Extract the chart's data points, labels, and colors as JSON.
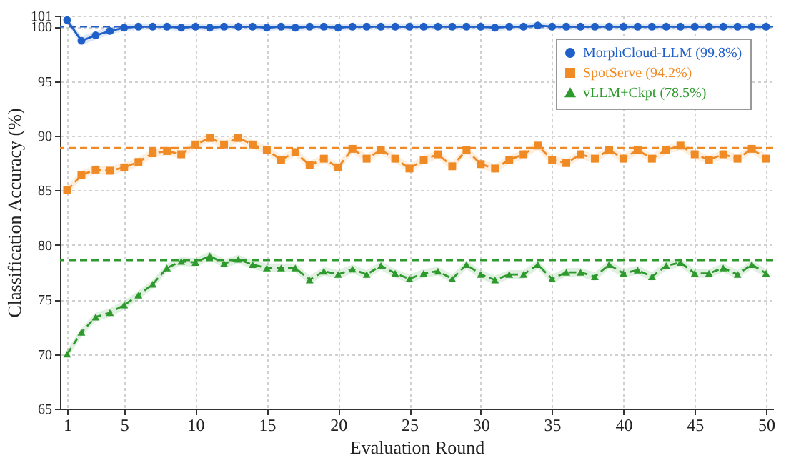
{
  "chart_data": {
    "type": "line",
    "xlabel": "Evaluation Round",
    "ylabel": "Classification Accuracy (%)",
    "x": [
      1,
      2,
      3,
      4,
      5,
      6,
      7,
      8,
      9,
      10,
      11,
      12,
      13,
      14,
      15,
      16,
      17,
      18,
      19,
      20,
      21,
      22,
      23,
      24,
      25,
      26,
      27,
      28,
      29,
      30,
      31,
      32,
      33,
      34,
      35,
      36,
      37,
      38,
      39,
      40,
      41,
      42,
      43,
      44,
      45,
      46,
      47,
      48,
      49,
      50
    ],
    "xlim": [
      0.5,
      50.5
    ],
    "xticks": [
      1,
      5,
      10,
      15,
      20,
      25,
      30,
      35,
      40,
      45,
      50
    ],
    "ylim": [
      65,
      101
    ],
    "yticks": [
      65,
      70,
      75,
      80,
      85,
      90,
      95,
      100,
      101
    ],
    "grid": true,
    "legend": "top right",
    "series": [
      {
        "name": "MorphCloud-LLM (99.8%)",
        "color": "#1f5fc8",
        "marker": "circle",
        "line_style": "solid",
        "values": [
          100.6,
          98.7,
          99.2,
          99.6,
          99.9,
          100,
          100,
          100,
          99.9,
          100,
          99.9,
          100,
          100,
          100,
          99.9,
          100,
          99.9,
          100,
          100,
          99.9,
          100,
          100,
          100,
          100,
          100,
          100,
          100,
          100,
          100,
          100,
          99.9,
          100,
          100,
          100.1,
          100,
          100,
          100,
          100,
          100,
          100,
          100,
          100,
          100,
          100,
          100,
          100,
          100,
          100,
          100,
          100
        ],
        "lower": [
          100.3,
          98.3,
          98.8,
          99.3,
          99.6,
          99.7,
          99.7,
          99.7,
          99.6,
          99.7,
          99.6,
          99.7,
          99.7,
          99.7,
          99.6,
          99.7,
          99.6,
          99.7,
          99.7,
          99.6,
          99.7,
          99.7,
          99.7,
          99.7,
          99.7,
          99.7,
          99.7,
          99.7,
          99.7,
          99.7,
          99.6,
          99.7,
          99.7,
          99.8,
          99.7,
          99.7,
          99.7,
          99.7,
          99.7,
          99.7,
          99.7,
          99.7,
          99.7,
          99.7,
          99.7,
          99.7,
          99.7,
          99.7,
          99.7,
          99.7
        ],
        "upper": [
          100.9,
          99.1,
          99.6,
          99.9,
          100.2,
          100.3,
          100.3,
          100.3,
          100.2,
          100.3,
          100.2,
          100.3,
          100.3,
          100.3,
          100.2,
          100.3,
          100.2,
          100.3,
          100.3,
          100.2,
          100.3,
          100.3,
          100.3,
          100.3,
          100.3,
          100.3,
          100.3,
          100.3,
          100.3,
          100.3,
          100.2,
          100.3,
          100.3,
          100.4,
          100.3,
          100.3,
          100.3,
          100.3,
          100.3,
          100.3,
          100.3,
          100.3,
          100.3,
          100.3,
          100.3,
          100.3,
          100.3,
          100.3,
          100.3,
          100.3
        ]
      },
      {
        "name": "SpotServe (94.2%)",
        "color": "#f08a24",
        "marker": "square",
        "line_style": "dashed",
        "values": [
          85.0,
          86.4,
          86.9,
          86.8,
          87.1,
          87.6,
          88.4,
          88.6,
          88.3,
          89.2,
          89.8,
          89.2,
          89.8,
          89.2,
          88.7,
          87.8,
          88.5,
          87.3,
          87.9,
          87.1,
          88.8,
          87.9,
          88.7,
          87.9,
          87.0,
          87.8,
          88.3,
          87.2,
          88.7,
          87.4,
          87.0,
          87.8,
          88.3,
          89.1,
          87.8,
          87.5,
          88.3,
          87.9,
          88.7,
          87.9,
          88.7,
          87.9,
          88.7,
          89.1,
          88.3,
          87.8,
          88.3,
          87.9,
          88.8,
          87.9
        ],
        "lower": [
          84.6,
          86.0,
          86.5,
          86.4,
          86.7,
          87.2,
          88.0,
          88.2,
          87.9,
          88.8,
          89.4,
          88.8,
          89.4,
          88.8,
          88.3,
          87.4,
          88.1,
          86.9,
          87.5,
          86.7,
          88.4,
          87.5,
          88.3,
          87.5,
          86.6,
          87.4,
          87.9,
          86.8,
          88.3,
          87.0,
          86.6,
          87.4,
          87.9,
          88.7,
          87.4,
          87.1,
          87.9,
          87.5,
          88.3,
          87.5,
          88.3,
          87.5,
          88.3,
          88.7,
          87.9,
          87.4,
          87.9,
          87.5,
          88.4,
          87.5
        ],
        "upper": [
          85.4,
          86.8,
          87.3,
          87.2,
          87.5,
          88.0,
          88.8,
          89.0,
          88.7,
          89.6,
          90.2,
          89.6,
          90.2,
          89.6,
          89.1,
          88.2,
          88.9,
          87.7,
          88.3,
          87.5,
          89.2,
          88.3,
          89.1,
          88.3,
          87.4,
          88.2,
          88.7,
          87.6,
          89.1,
          87.8,
          87.4,
          88.2,
          88.7,
          89.5,
          88.2,
          87.9,
          88.7,
          88.3,
          89.1,
          88.3,
          89.1,
          88.3,
          89.1,
          89.5,
          88.7,
          88.2,
          88.7,
          88.3,
          89.2,
          88.3
        ]
      },
      {
        "name": "vLLM+Ckpt (78.5%)",
        "color": "#2e9a2e",
        "marker": "triangle",
        "line_style": "dashed",
        "values": [
          70.0,
          72.0,
          73.4,
          73.8,
          74.5,
          75.4,
          76.4,
          77.9,
          78.5,
          78.4,
          79.0,
          78.3,
          78.7,
          78.2,
          77.9,
          77.9,
          77.9,
          76.8,
          77.6,
          77.3,
          77.8,
          77.3,
          78.1,
          77.4,
          76.9,
          77.4,
          77.6,
          76.9,
          78.2,
          77.3,
          76.8,
          77.3,
          77.3,
          78.2,
          76.9,
          77.5,
          77.5,
          77.1,
          78.2,
          77.4,
          77.7,
          77.1,
          78.1,
          78.4,
          77.4,
          77.4,
          77.9,
          77.3,
          78.2,
          77.4
        ],
        "lower": [
          69.6,
          71.6,
          73.0,
          73.4,
          74.1,
          75.0,
          76.0,
          77.5,
          78.1,
          78.0,
          78.6,
          77.9,
          78.3,
          77.8,
          77.5,
          77.5,
          77.5,
          76.4,
          77.2,
          76.9,
          77.4,
          76.9,
          77.7,
          77.0,
          76.5,
          77.0,
          77.2,
          76.5,
          77.8,
          76.9,
          76.4,
          76.9,
          76.9,
          77.8,
          76.5,
          77.1,
          77.1,
          76.7,
          77.8,
          77.0,
          77.3,
          76.7,
          77.7,
          78.0,
          77.0,
          77.0,
          77.5,
          76.9,
          77.8,
          77.0
        ],
        "upper": [
          70.4,
          72.4,
          73.8,
          74.2,
          74.9,
          75.8,
          76.8,
          78.3,
          78.9,
          78.8,
          79.4,
          78.7,
          79.1,
          78.6,
          78.3,
          78.3,
          78.3,
          77.2,
          78.0,
          77.7,
          78.2,
          77.7,
          78.5,
          77.8,
          77.3,
          77.8,
          78.0,
          77.3,
          78.6,
          77.7,
          77.2,
          77.7,
          77.7,
          78.6,
          77.3,
          77.9,
          77.9,
          77.5,
          78.6,
          77.8,
          78.1,
          77.5,
          78.5,
          78.8,
          77.8,
          77.8,
          78.3,
          77.7,
          78.6,
          77.8
        ]
      }
    ],
    "ref_lines": [
      {
        "axis": "y",
        "value": 100,
        "color": "#1f5fc8",
        "line_style": "dashed"
      },
      {
        "axis": "y",
        "value": 88.9,
        "color": "#f08a24",
        "line_style": "dashed"
      },
      {
        "axis": "y",
        "value": 78.6,
        "color": "#2e9a2e",
        "line_style": "dashed"
      }
    ]
  }
}
